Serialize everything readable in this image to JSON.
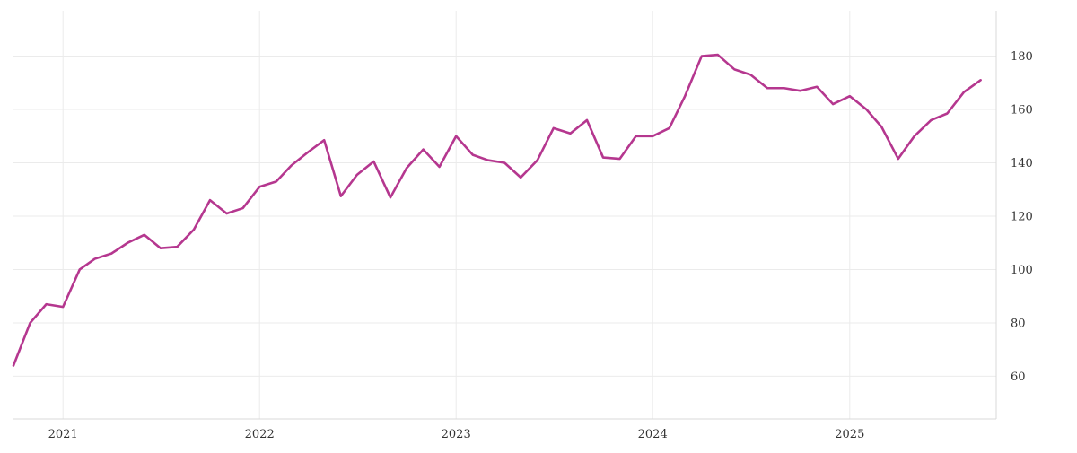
{
  "chart_data": {
    "type": "line",
    "title": "",
    "xlabel": "",
    "ylabel": "",
    "x_tick_labels": [
      "2021",
      "2022",
      "2023",
      "2024",
      "2025"
    ],
    "y_tick_labels": [
      "60",
      "80",
      "100",
      "120",
      "140",
      "160",
      "180"
    ],
    "ylim": [
      44,
      197
    ],
    "xlim": [
      "2020-10-01",
      "2025-09-30"
    ],
    "grid": true,
    "y_axis_side": "right",
    "series": [
      {
        "color": "#b5378f",
        "points": [
          [
            "2020-10-01",
            64
          ],
          [
            "2020-11-01",
            80
          ],
          [
            "2020-12-01",
            87
          ],
          [
            "2021-01-01",
            86
          ],
          [
            "2021-02-01",
            100
          ],
          [
            "2021-03-01",
            104
          ],
          [
            "2021-04-01",
            106
          ],
          [
            "2021-05-01",
            110
          ],
          [
            "2021-06-01",
            113
          ],
          [
            "2021-07-01",
            108
          ],
          [
            "2021-08-01",
            108.5
          ],
          [
            "2021-09-01",
            115
          ],
          [
            "2021-10-01",
            126
          ],
          [
            "2021-11-01",
            121
          ],
          [
            "2021-12-01",
            123
          ],
          [
            "2022-01-01",
            131
          ],
          [
            "2022-02-01",
            133
          ],
          [
            "2022-03-01",
            139
          ],
          [
            "2022-04-01",
            144
          ],
          [
            "2022-05-01",
            148.5
          ],
          [
            "2022-06-01",
            127.5
          ],
          [
            "2022-07-01",
            135.5
          ],
          [
            "2022-08-01",
            140.5
          ],
          [
            "2022-09-01",
            127
          ],
          [
            "2022-10-01",
            138
          ],
          [
            "2022-11-01",
            145
          ],
          [
            "2022-12-01",
            138.5
          ],
          [
            "2023-01-01",
            150
          ],
          [
            "2023-02-01",
            143
          ],
          [
            "2023-03-01",
            141
          ],
          [
            "2023-04-01",
            140
          ],
          [
            "2023-05-01",
            134.5
          ],
          [
            "2023-06-01",
            141
          ],
          [
            "2023-07-01",
            153
          ],
          [
            "2023-08-01",
            151
          ],
          [
            "2023-09-01",
            156
          ],
          [
            "2023-10-01",
            142
          ],
          [
            "2023-11-01",
            141.5
          ],
          [
            "2023-12-01",
            150
          ],
          [
            "2024-01-01",
            150
          ],
          [
            "2024-02-01",
            153
          ],
          [
            "2024-03-01",
            165
          ],
          [
            "2024-04-01",
            180
          ],
          [
            "2024-05-01",
            180.5
          ],
          [
            "2024-06-01",
            175
          ],
          [
            "2024-07-01",
            173
          ],
          [
            "2024-08-01",
            168
          ],
          [
            "2024-09-01",
            168
          ],
          [
            "2024-10-01",
            167
          ],
          [
            "2024-11-01",
            168.5
          ],
          [
            "2024-12-01",
            162
          ],
          [
            "2025-01-01",
            165
          ],
          [
            "2025-02-01",
            160
          ],
          [
            "2025-03-01",
            153.5
          ],
          [
            "2025-04-01",
            141.5
          ],
          [
            "2025-05-01",
            150
          ],
          [
            "2025-06-01",
            156
          ],
          [
            "2025-07-01",
            158.5
          ],
          [
            "2025-08-01",
            166.5
          ],
          [
            "2025-09-01",
            171
          ]
        ]
      }
    ]
  }
}
